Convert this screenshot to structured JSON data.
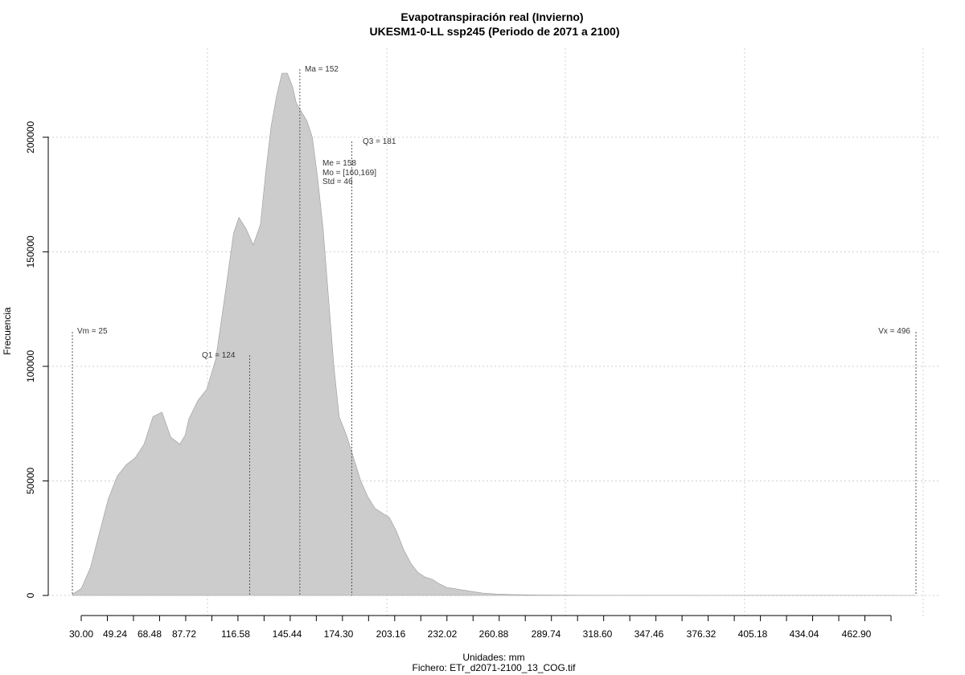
{
  "chart_data": {
    "type": "area",
    "title": "Evapotranspiración real (Invierno)",
    "subtitle": "UKESM1-0-LL ssp245 (Periodo de 2071 a 2100)",
    "xlabel": "Unidades: mm",
    "ylabel": "Frecuencia",
    "caption": "Fichero: ETr_d2071-2100_13_COG.tif",
    "grid": true,
    "xlim": [
      25,
      496
    ],
    "ylim": [
      0,
      230000
    ],
    "x_ticks": [
      "30.00",
      "49.24",
      "68.48",
      "87.72",
      "116.58",
      "145.44",
      "174.30",
      "203.16",
      "232.02",
      "260.88",
      "289.74",
      "318.60",
      "347.46",
      "376.32",
      "405.18",
      "434.04",
      "462.90"
    ],
    "y_ticks": [
      "0",
      "50000",
      "100000",
      "150000",
      "200000"
    ],
    "series": [
      {
        "x": [
          25,
          30,
          35,
          40,
          45,
          50,
          55,
          60,
          65,
          70,
          75,
          80,
          85,
          88,
          90,
          95,
          100,
          105,
          110,
          115,
          118,
          122,
          126,
          130,
          133,
          136,
          139,
          142,
          145,
          148,
          150,
          153,
          156,
          159,
          162,
          165,
          168,
          171,
          174,
          178,
          182,
          186,
          190,
          194,
          198,
          202,
          206,
          210,
          214,
          218,
          222,
          226,
          230,
          234,
          238,
          242,
          246,
          250,
          254,
          258,
          262,
          266,
          270,
          275,
          280,
          290,
          300,
          320,
          350,
          400,
          450,
          496
        ],
        "y": [
          500,
          3000,
          12000,
          27000,
          42000,
          52000,
          57000,
          60000,
          66000,
          78000,
          80000,
          69000,
          66000,
          70000,
          77000,
          85000,
          90000,
          103000,
          130000,
          158000,
          165000,
          160000,
          153000,
          162000,
          185000,
          205000,
          218000,
          228000,
          228000,
          222000,
          215000,
          211000,
          207000,
          200000,
          182000,
          160000,
          130000,
          100000,
          78000,
          70000,
          60000,
          50000,
          43000,
          38000,
          36000,
          34000,
          28000,
          20000,
          14000,
          10000,
          8000,
          7000,
          5000,
          3500,
          3000,
          2500,
          2000,
          1500,
          1000,
          800,
          600,
          500,
          400,
          300,
          200,
          150,
          100,
          80,
          60,
          40,
          20,
          0
        ]
      }
    ],
    "annotations": {
      "vm": "Vm = 25",
      "vx": "Vx = 496",
      "q1": "Q1 = 124",
      "q3": "Q3 = 181",
      "ma": "Ma = 152",
      "me": "Me = 158",
      "mo": "Mo = [160,169]",
      "std": "Std = 46"
    },
    "markers": {
      "vm": 25,
      "vx": 496,
      "q1": 124,
      "ma": 152,
      "q3": 181
    }
  }
}
